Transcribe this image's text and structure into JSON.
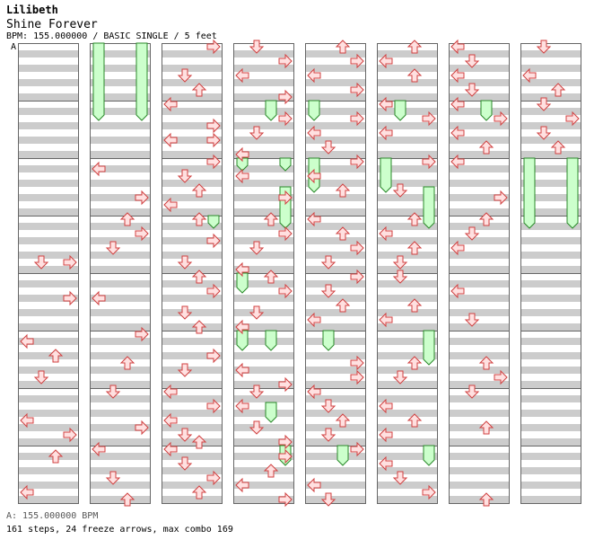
{
  "song": {
    "artist": "Lilibeth",
    "title": "Shine Forever",
    "info": "BPM: 155.000000 / BASIC SINGLE / 5 feet",
    "bpm_marker": "A"
  },
  "footer": {
    "bpm_legend": "A: 155.000000 BPM",
    "summary": "161 steps, 24 freeze arrows, max combo 169"
  },
  "colors": {
    "stripe": "#cccccc",
    "arrow_fill": "#ffe0e0",
    "arrow_stroke": "#d04040",
    "freeze_fill": "#ccffcc",
    "freeze_stroke": "#2a8a2a"
  },
  "chart_data": {
    "type": "step-chart",
    "lanes": [
      "left",
      "down",
      "up",
      "right"
    ],
    "columns": 8,
    "measures_per_column": 8,
    "rows_per_measure": 8,
    "steps": [
      [
        0,
        3,
        6,
        1
      ],
      [
        0,
        3,
        6,
        3
      ],
      [
        0,
        4,
        3,
        3
      ],
      [
        0,
        5,
        1,
        0
      ],
      [
        0,
        5,
        3,
        2
      ],
      [
        0,
        5,
        6,
        1
      ],
      [
        0,
        6,
        4,
        0
      ],
      [
        0,
        6,
        6,
        3
      ],
      [
        0,
        7,
        1,
        2
      ],
      [
        0,
        7,
        6,
        0
      ],
      [
        1,
        2,
        1,
        0
      ],
      [
        1,
        2,
        5,
        3
      ],
      [
        1,
        3,
        0,
        2
      ],
      [
        1,
        3,
        2,
        3
      ],
      [
        1,
        3,
        4,
        1
      ],
      [
        1,
        4,
        3,
        0
      ],
      [
        1,
        5,
        0,
        3
      ],
      [
        1,
        5,
        4,
        2
      ],
      [
        1,
        6,
        0,
        1
      ],
      [
        1,
        6,
        5,
        3
      ],
      [
        1,
        7,
        0,
        0
      ],
      [
        1,
        7,
        4,
        1
      ],
      [
        1,
        7,
        7,
        2
      ],
      [
        2,
        0,
        0,
        3
      ],
      [
        2,
        0,
        4,
        1
      ],
      [
        2,
        0,
        6,
        2
      ],
      [
        2,
        1,
        0,
        0
      ],
      [
        2,
        1,
        3,
        3
      ],
      [
        2,
        1,
        5,
        0
      ],
      [
        2,
        1,
        5,
        3
      ],
      [
        2,
        2,
        0,
        3
      ],
      [
        2,
        2,
        2,
        1
      ],
      [
        2,
        2,
        4,
        2
      ],
      [
        2,
        2,
        6,
        0
      ],
      [
        2,
        3,
        0,
        2
      ],
      [
        2,
        3,
        3,
        3
      ],
      [
        2,
        3,
        6,
        1
      ],
      [
        2,
        4,
        0,
        2
      ],
      [
        2,
        4,
        2,
        3
      ],
      [
        2,
        4,
        5,
        1
      ],
      [
        2,
        4,
        7,
        2
      ],
      [
        2,
        5,
        3,
        3
      ],
      [
        2,
        5,
        5,
        1
      ],
      [
        2,
        6,
        0,
        0
      ],
      [
        2,
        6,
        2,
        3
      ],
      [
        2,
        6,
        4,
        0
      ],
      [
        2,
        6,
        6,
        1
      ],
      [
        2,
        6,
        7,
        2
      ],
      [
        2,
        7,
        0,
        0
      ],
      [
        2,
        7,
        2,
        1
      ],
      [
        2,
        7,
        4,
        3
      ],
      [
        2,
        7,
        6,
        2
      ],
      [
        3,
        0,
        0,
        1
      ],
      [
        3,
        0,
        2,
        3
      ],
      [
        3,
        0,
        4,
        0
      ],
      [
        3,
        0,
        7,
        3
      ],
      [
        3,
        1,
        2,
        3
      ],
      [
        3,
        1,
        4,
        1
      ],
      [
        3,
        1,
        7,
        0
      ],
      [
        3,
        2,
        2,
        0
      ],
      [
        3,
        2,
        5,
        3
      ],
      [
        3,
        3,
        0,
        2
      ],
      [
        3,
        3,
        2,
        3
      ],
      [
        3,
        3,
        4,
        1
      ],
      [
        3,
        3,
        7,
        0
      ],
      [
        3,
        4,
        0,
        2
      ],
      [
        3,
        4,
        2,
        3
      ],
      [
        3,
        4,
        5,
        1
      ],
      [
        3,
        4,
        7,
        0
      ],
      [
        3,
        5,
        5,
        0
      ],
      [
        3,
        5,
        7,
        3
      ],
      [
        3,
        6,
        0,
        1
      ],
      [
        3,
        6,
        2,
        0
      ],
      [
        3,
        6,
        5,
        1
      ],
      [
        3,
        6,
        7,
        3
      ],
      [
        3,
        7,
        1,
        3
      ],
      [
        3,
        7,
        3,
        2
      ],
      [
        3,
        7,
        5,
        0
      ],
      [
        3,
        7,
        7,
        3
      ],
      [
        4,
        0,
        0,
        2
      ],
      [
        4,
        0,
        2,
        3
      ],
      [
        4,
        0,
        4,
        0
      ],
      [
        4,
        0,
        6,
        3
      ],
      [
        4,
        1,
        2,
        3
      ],
      [
        4,
        1,
        4,
        0
      ],
      [
        4,
        1,
        6,
        1
      ],
      [
        4,
        2,
        0,
        3
      ],
      [
        4,
        2,
        2,
        0
      ],
      [
        4,
        2,
        4,
        2
      ],
      [
        4,
        3,
        0,
        0
      ],
      [
        4,
        3,
        2,
        2
      ],
      [
        4,
        3,
        4,
        3
      ],
      [
        4,
        3,
        6,
        1
      ],
      [
        4,
        4,
        0,
        3
      ],
      [
        4,
        4,
        2,
        1
      ],
      [
        4,
        4,
        4,
        2
      ],
      [
        4,
        4,
        6,
        0
      ],
      [
        4,
        5,
        4,
        3
      ],
      [
        4,
        5,
        6,
        3
      ],
      [
        4,
        6,
        0,
        0
      ],
      [
        4,
        6,
        2,
        1
      ],
      [
        4,
        6,
        4,
        2
      ],
      [
        4,
        6,
        6,
        1
      ],
      [
        4,
        7,
        0,
        3
      ],
      [
        4,
        7,
        5,
        0
      ],
      [
        4,
        7,
        7,
        1
      ],
      [
        5,
        0,
        0,
        2
      ],
      [
        5,
        0,
        2,
        0
      ],
      [
        5,
        0,
        4,
        2
      ],
      [
        5,
        1,
        0,
        0
      ],
      [
        5,
        1,
        2,
        3
      ],
      [
        5,
        1,
        4,
        0
      ],
      [
        5,
        2,
        0,
        3
      ],
      [
        5,
        2,
        4,
        1
      ],
      [
        5,
        3,
        0,
        2
      ],
      [
        5,
        3,
        2,
        0
      ],
      [
        5,
        3,
        4,
        2
      ],
      [
        5,
        3,
        6,
        1
      ],
      [
        5,
        4,
        0,
        1
      ],
      [
        5,
        4,
        4,
        2
      ],
      [
        5,
        4,
        6,
        0
      ],
      [
        5,
        5,
        4,
        2
      ],
      [
        5,
        5,
        6,
        1
      ],
      [
        5,
        6,
        2,
        0
      ],
      [
        5,
        6,
        4,
        2
      ],
      [
        5,
        6,
        6,
        0
      ],
      [
        5,
        7,
        2,
        0
      ],
      [
        5,
        7,
        4,
        1
      ],
      [
        5,
        7,
        6,
        3
      ],
      [
        6,
        0,
        0,
        0
      ],
      [
        6,
        0,
        2,
        1
      ],
      [
        6,
        0,
        4,
        0
      ],
      [
        6,
        0,
        6,
        1
      ],
      [
        6,
        1,
        0,
        0
      ],
      [
        6,
        1,
        2,
        3
      ],
      [
        6,
        1,
        4,
        0
      ],
      [
        6,
        1,
        6,
        2
      ],
      [
        6,
        2,
        0,
        0
      ],
      [
        6,
        2,
        5,
        3
      ],
      [
        6,
        3,
        0,
        2
      ],
      [
        6,
        3,
        2,
        1
      ],
      [
        6,
        3,
        4,
        0
      ],
      [
        6,
        4,
        2,
        0
      ],
      [
        6,
        4,
        6,
        1
      ],
      [
        6,
        5,
        4,
        2
      ],
      [
        6,
        5,
        6,
        3
      ],
      [
        6,
        6,
        0,
        1
      ],
      [
        6,
        6,
        5,
        2
      ],
      [
        6,
        7,
        7,
        2
      ],
      [
        7,
        0,
        0,
        1
      ],
      [
        7,
        0,
        4,
        0
      ],
      [
        7,
        0,
        6,
        2
      ],
      [
        7,
        1,
        0,
        1
      ],
      [
        7,
        1,
        2,
        3
      ],
      [
        7,
        1,
        4,
        1
      ],
      [
        7,
        1,
        6,
        2
      ]
    ],
    "freezes": [
      [
        1,
        0,
        0,
        0,
        1,
        2
      ],
      [
        1,
        0,
        0,
        3,
        1,
        2
      ],
      [
        2,
        3,
        0,
        3,
        3,
        1
      ],
      [
        3,
        1,
        0,
        2,
        1,
        2
      ],
      [
        3,
        2,
        0,
        0,
        2,
        1
      ],
      [
        3,
        2,
        0,
        3,
        2,
        1
      ],
      [
        3,
        2,
        4,
        3,
        3,
        1
      ],
      [
        3,
        4,
        0,
        0,
        4,
        2
      ],
      [
        3,
        5,
        0,
        0,
        5,
        2
      ],
      [
        3,
        5,
        0,
        2,
        5,
        2
      ],
      [
        3,
        6,
        2,
        2,
        6,
        4
      ],
      [
        3,
        7,
        0,
        3,
        7,
        2
      ],
      [
        4,
        1,
        0,
        0,
        1,
        2
      ],
      [
        4,
        2,
        0,
        0,
        2,
        4
      ],
      [
        4,
        5,
        0,
        1,
        5,
        2
      ],
      [
        4,
        7,
        0,
        2,
        7,
        2
      ],
      [
        5,
        1,
        0,
        1,
        1,
        2
      ],
      [
        5,
        2,
        0,
        0,
        2,
        4
      ],
      [
        5,
        2,
        4,
        3,
        3,
        1
      ],
      [
        5,
        5,
        0,
        3,
        5,
        4
      ],
      [
        5,
        7,
        0,
        3,
        7,
        2
      ],
      [
        6,
        1,
        0,
        2,
        1,
        2
      ],
      [
        7,
        2,
        0,
        0,
        3,
        1
      ],
      [
        7,
        2,
        0,
        3,
        3,
        1
      ]
    ]
  }
}
